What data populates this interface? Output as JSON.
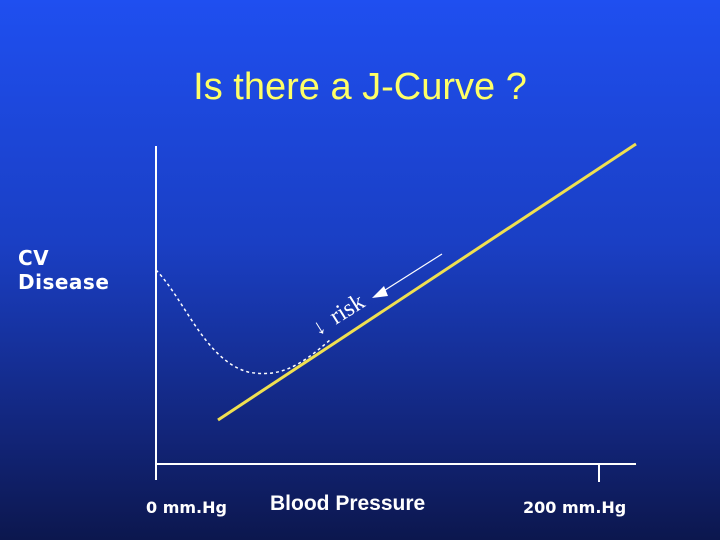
{
  "slide": {
    "title": "Is there a J-Curve ?",
    "y_axis_label_line1": "CV",
    "y_axis_label_line2": "Disease",
    "x_axis_min_label": "0 mm.Hg",
    "x_axis_label": "Blood Pressure",
    "x_axis_max_label": "200 mm.Hg",
    "annotation_arrow": "↓",
    "annotation_text": "risk"
  },
  "colors": {
    "background": "#1a3fc4",
    "title": "#ffff66",
    "linear_line": "#f0e050",
    "j_curve": "#ffffff",
    "axes": "#ffffff"
  }
}
